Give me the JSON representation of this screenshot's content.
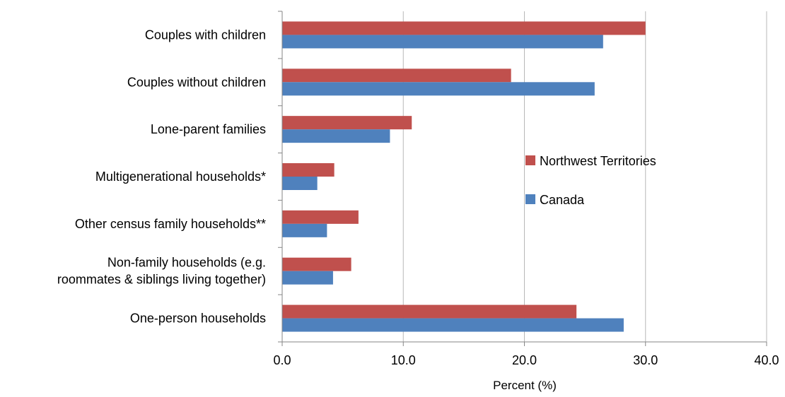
{
  "chart_data": {
    "type": "bar",
    "orientation": "horizontal",
    "categories": [
      [
        "Couples with children"
      ],
      [
        "Couples without children"
      ],
      [
        "Lone-parent families"
      ],
      [
        "Multigenerational households*"
      ],
      [
        "Other census family households**"
      ],
      [
        "Non-family households (e.g.",
        "roommates & siblings living together)"
      ],
      [
        "One-person households"
      ]
    ],
    "series": [
      {
        "name": "Northwest Territories",
        "color": "#c0504d",
        "values": [
          30.0,
          18.9,
          10.7,
          4.3,
          6.3,
          5.7,
          24.3
        ]
      },
      {
        "name": "Canada",
        "color": "#4f81bd",
        "values": [
          26.5,
          25.8,
          8.9,
          2.9,
          3.7,
          4.2,
          28.2
        ]
      }
    ],
    "xlim": [
      0,
      40
    ],
    "xticks": [
      0,
      10,
      20,
      30,
      40
    ],
    "xtick_labels": [
      "0.0",
      "10.0",
      "20.0",
      "30.0",
      "40.0"
    ],
    "xlabel": "Percent (%)",
    "grid": "vertical",
    "legend_position": "right-center"
  }
}
